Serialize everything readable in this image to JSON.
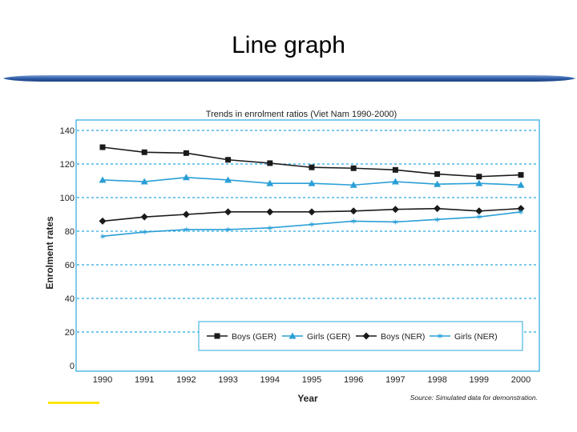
{
  "slide": {
    "title": "Line graph"
  },
  "colors": {
    "frame": "#29a8e0",
    "grid": "#29a8e0",
    "black_series": "#1a1a1a",
    "blue_series": "#2a9fd6",
    "bar": "#3f6bb3",
    "highlight": "#ffe400"
  },
  "chart_data": {
    "type": "line",
    "title": "Trends in enrolment ratios (Viet Nam 1990-2000)",
    "xlabel": "Year",
    "ylabel": "Enrolment rates",
    "source": "Source: Simulated data for demonstration.",
    "categories": [
      "1990",
      "1991",
      "1992",
      "1993",
      "1994",
      "1995",
      "1996",
      "1997",
      "1998",
      "1999",
      "2000"
    ],
    "yticks": [
      "0",
      "20",
      "40",
      "60",
      "80",
      "100",
      "120",
      "140"
    ],
    "ylim": [
      0,
      140
    ],
    "grid": true,
    "legend_position": "bottom-right inside plot",
    "series": [
      {
        "name": "Boys (GER)",
        "marker": "square",
        "color": "#1a1a1a",
        "values": [
          130,
          127,
          126.5,
          122.5,
          120.5,
          118,
          117.5,
          116.5,
          114,
          112.5,
          113.5
        ]
      },
      {
        "name": "Girls (GER)",
        "marker": "triangle",
        "color": "#2a9fd6",
        "values": [
          110.5,
          109.5,
          112,
          110.5,
          108.5,
          108.5,
          107.5,
          109.5,
          108,
          108.5,
          107.5
        ]
      },
      {
        "name": "Boys (NER)",
        "marker": "diamond",
        "color": "#1a1a1a",
        "values": [
          86,
          88.5,
          90,
          91.5,
          91.5,
          91.5,
          92,
          93,
          93.5,
          92,
          93.5
        ]
      },
      {
        "name": "Girls (NER)",
        "marker": "star",
        "color": "#2a9fd6",
        "values": [
          77,
          79.5,
          81,
          81,
          82,
          84,
          86,
          85.5,
          87,
          88.5,
          91.5
        ]
      }
    ]
  }
}
